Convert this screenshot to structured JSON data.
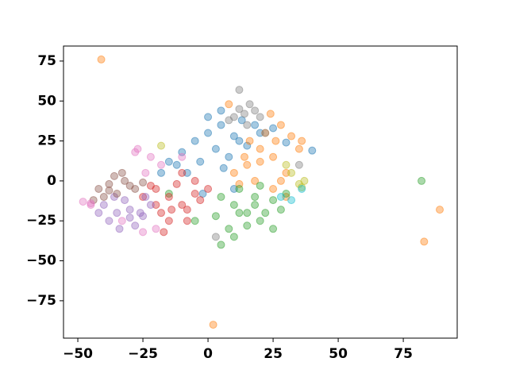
{
  "chart_data": {
    "type": "scatter",
    "xlim": [
      -55.5,
      95.7
    ],
    "ylim": [
      -98.4,
      84.4
    ],
    "xticks": [
      {
        "value": -50,
        "label": "−50"
      },
      {
        "value": -25,
        "label": "−25"
      },
      0,
      25,
      50,
      75
    ],
    "yticks": [
      {
        "value": -75,
        "label": "−75"
      },
      {
        "value": -50,
        "label": "−50"
      },
      {
        "value": -25,
        "label": "−25"
      },
      0,
      25,
      50,
      75
    ],
    "series": [
      {
        "color": "#1f77b4",
        "x": [
          -10,
          -5,
          0,
          5,
          10,
          15,
          20,
          -12,
          -3,
          3,
          8,
          13,
          18,
          -8,
          0,
          6,
          12,
          -15,
          25,
          40,
          -18,
          5,
          30,
          -2,
          10
        ],
        "values": [
          18,
          25,
          30,
          35,
          28,
          22,
          30,
          10,
          12,
          20,
          15,
          38,
          35,
          5,
          40,
          8,
          25,
          12,
          33,
          19,
          5,
          44,
          24,
          -8,
          -5
        ]
      },
      {
        "color": "#ff7f0e",
        "x": [
          15,
          20,
          25,
          30,
          18,
          22,
          28,
          12,
          35,
          25,
          20,
          32,
          10,
          16,
          26,
          30,
          -41,
          83,
          89,
          2,
          8,
          24,
          36,
          14,
          28
        ],
        "values": [
          10,
          20,
          15,
          5,
          0,
          30,
          35,
          -2,
          20,
          -5,
          12,
          28,
          5,
          25,
          25,
          -10,
          76,
          -38,
          -18,
          -90,
          48,
          42,
          25,
          15,
          0
        ]
      },
      {
        "color": "#2ca02c",
        "x": [
          5,
          10,
          15,
          20,
          25,
          8,
          12,
          18,
          22,
          28,
          3,
          15,
          25,
          10,
          20,
          30,
          5,
          82,
          -15,
          -5,
          18,
          12
        ],
        "values": [
          -10,
          -15,
          -20,
          -25,
          -12,
          -30,
          -5,
          -10,
          -20,
          -18,
          -22,
          -28,
          -30,
          -35,
          -3,
          -8,
          -40,
          0,
          -8,
          -25,
          -15,
          -20
        ]
      },
      {
        "color": "#d62728",
        "x": [
          -20,
          -15,
          -10,
          -5,
          -18,
          -12,
          -8,
          -3,
          -25,
          -15,
          -10,
          -20,
          -5,
          -14,
          -22,
          0,
          -8,
          -17
        ],
        "values": [
          -5,
          -10,
          -15,
          -8,
          -20,
          -2,
          -25,
          -12,
          -10,
          -25,
          5,
          -15,
          0,
          -18,
          -3,
          -5,
          -18,
          -32
        ]
      },
      {
        "color": "#9467bd",
        "x": [
          -40,
          -35,
          -30,
          -25,
          -38,
          -32,
          -28,
          -22,
          -36,
          -30,
          -26,
          -34,
          -42,
          -24
        ],
        "values": [
          -15,
          -20,
          -18,
          -22,
          -25,
          -12,
          -28,
          -15,
          -10,
          -23,
          -20,
          -30,
          -20,
          -10
        ]
      },
      {
        "color": "#8c564b",
        "x": [
          -42,
          -38,
          -35,
          -32,
          -28,
          -40,
          -36,
          -30,
          -25,
          -33,
          -44,
          -38
        ],
        "values": [
          -5,
          -2,
          -8,
          0,
          -5,
          -10,
          3,
          -3,
          -1,
          5,
          -12,
          -6
        ]
      },
      {
        "color": "#e377c2",
        "x": [
          -48,
          -45,
          -28,
          -27,
          -22,
          -18,
          -25,
          -33,
          -20,
          -10,
          -45,
          -24
        ],
        "values": [
          -13,
          -14,
          18,
          20,
          15,
          10,
          -32,
          -25,
          -30,
          15,
          -15,
          5
        ]
      },
      {
        "color": "#7f7f7f",
        "x": [
          10,
          12,
          14,
          16,
          18,
          8,
          20,
          15,
          22,
          3,
          35,
          12
        ],
        "values": [
          40,
          45,
          42,
          48,
          44,
          38,
          40,
          35,
          30,
          -35,
          10,
          57
        ]
      },
      {
        "color": "#bcbd22",
        "x": [
          35,
          37,
          32,
          -18,
          30,
          36
        ],
        "values": [
          -2,
          0,
          5,
          22,
          10,
          -4
        ]
      },
      {
        "color": "#17becf",
        "x": [
          36,
          28,
          32
        ],
        "values": [
          -5,
          -10,
          -12
        ]
      }
    ]
  }
}
